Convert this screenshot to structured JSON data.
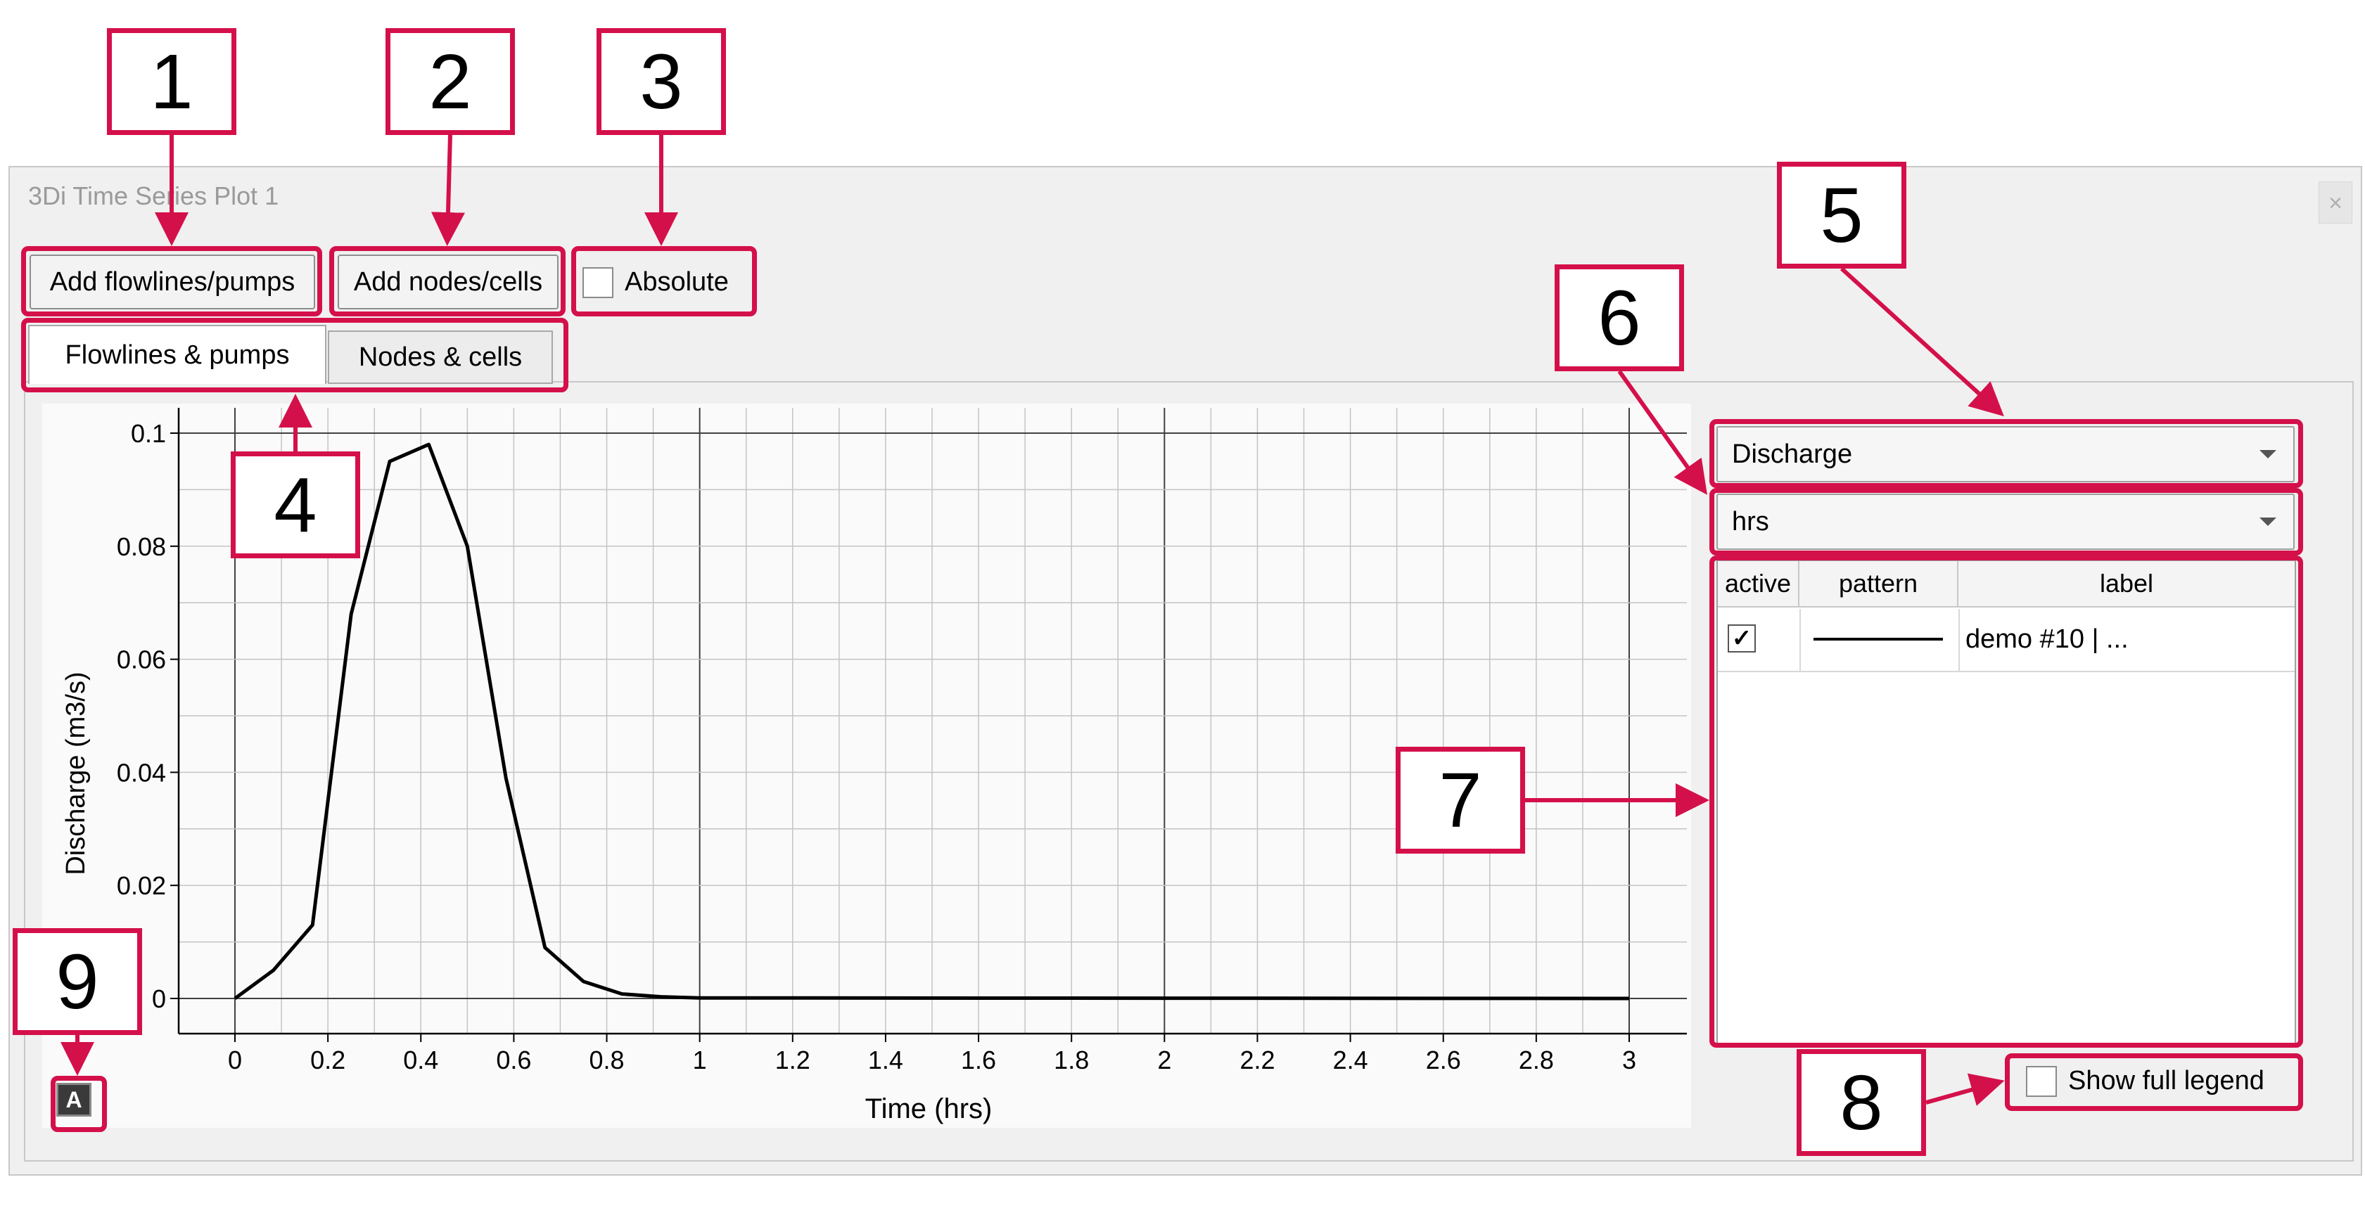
{
  "window": {
    "title": "3Di Time Series Plot 1",
    "close": "×"
  },
  "toolbar": {
    "add_flowlines_label": "Add flowlines/pumps",
    "add_nodes_label": "Add nodes/cells",
    "absolute_label": "Absolute",
    "absolute_checked": false
  },
  "tabs": [
    {
      "label": "Flowlines & pumps",
      "active": true
    },
    {
      "label": "Nodes & cells",
      "active": false
    }
  ],
  "controls": {
    "parameter_value": "Discharge",
    "time_unit_value": "hrs",
    "show_full_legend_label": "Show full legend",
    "show_full_legend_checked": false,
    "auto_range_label": "A"
  },
  "legend": {
    "columns": [
      "active",
      "pattern",
      "label"
    ],
    "rows": [
      {
        "active": true,
        "label": "demo #10 | ..."
      }
    ]
  },
  "callouts": [
    "1",
    "2",
    "3",
    "4",
    "5",
    "6",
    "7",
    "8",
    "9"
  ],
  "chart_data": {
    "type": "line",
    "xlabel": "Time (hrs)",
    "ylabel": "Discharge (m3/s)",
    "xlim": [
      0,
      3
    ],
    "ylim": [
      0,
      0.1
    ],
    "x_ticks": [
      "0",
      "0.2",
      "0.4",
      "0.6",
      "0.8",
      "1",
      "1.2",
      "1.4",
      "1.6",
      "1.8",
      "2",
      "2.2",
      "2.4",
      "2.6",
      "2.8",
      "3"
    ],
    "y_ticks": [
      "0",
      "0.02",
      "0.04",
      "0.06",
      "0.08",
      "0.1"
    ],
    "grid": true,
    "series": [
      {
        "color": "#000000",
        "x": [
          0,
          0.083,
          0.167,
          0.25,
          0.333,
          0.417,
          0.5,
          0.583,
          0.667,
          0.75,
          0.833,
          0.917,
          1.0,
          3.0
        ],
        "y": [
          0,
          0.005,
          0.013,
          0.068,
          0.095,
          0.098,
          0.08,
          0.039,
          0.009,
          0.003,
          0.0008,
          0.0003,
          0.0001,
          0
        ]
      }
    ]
  }
}
